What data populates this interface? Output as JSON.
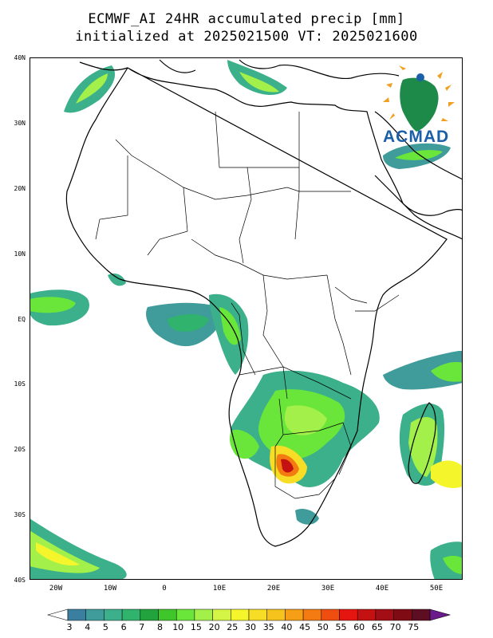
{
  "title": {
    "line1": "ECMWF_AI 24HR accumulated precip [mm]",
    "line2": "initialized at 2025021500 VT: 2025021600"
  },
  "logo": {
    "text": "ACMAD",
    "icon": "acmad-africa-logo-icon"
  },
  "map": {
    "region": "Africa",
    "lat_ticks": [
      "40N",
      "30N",
      "20N",
      "10N",
      "EQ",
      "10S",
      "20S",
      "30S",
      "40S"
    ],
    "lon_ticks": [
      "20W",
      "10W",
      "0",
      "10E",
      "20E",
      "30E",
      "40E",
      "50E"
    ]
  },
  "colorbar": {
    "labels": [
      "3",
      "4",
      "5",
      "6",
      "7",
      "8",
      "10",
      "15",
      "20",
      "25",
      "30",
      "35",
      "40",
      "45",
      "50",
      "55",
      "60",
      "65",
      "70",
      "75"
    ],
    "colors": [
      "#3a7fa0",
      "#3f9c9a",
      "#3bb08a",
      "#2fb36d",
      "#23a33d",
      "#3fc62a",
      "#6ae63a",
      "#a4f04a",
      "#d4f446",
      "#f5f52c",
      "#f7dd25",
      "#f6c31d",
      "#f59e16",
      "#f37b12",
      "#ef4e10",
      "#e51510",
      "#c41111",
      "#a30d15",
      "#7f0b15",
      "#5e0e22"
    ],
    "end_low_color": "#ffffff",
    "end_high_color": "#6a1a8a"
  }
}
